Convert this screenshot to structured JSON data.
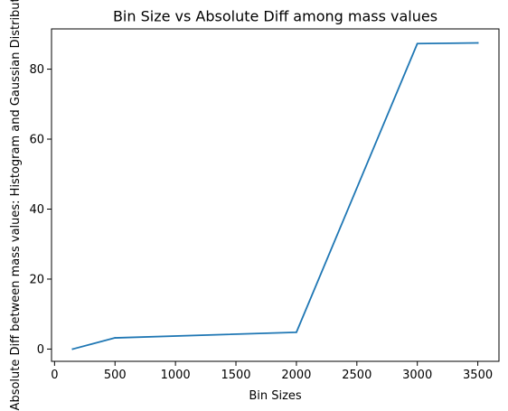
{
  "chart_data": {
    "type": "line",
    "title": "Bin Size vs Absolute Diff among mass values",
    "xlabel": "Bin Sizes",
    "ylabel": "Absolute Diff between mass values: Histogram and Gaussian Distribution",
    "xlim": [
      -25,
      3675
    ],
    "ylim": [
      -3.5,
      91.5
    ],
    "xticks": [
      0,
      500,
      1000,
      1500,
      2000,
      2500,
      3000,
      3500
    ],
    "xtick_labels": [
      "0",
      "500",
      "1000",
      "1500",
      "2000",
      "2500",
      "3000",
      "3500"
    ],
    "yticks": [
      0,
      20,
      40,
      60,
      80
    ],
    "ytick_labels": [
      "0",
      "20",
      "40",
      "60",
      "80"
    ],
    "grid": false,
    "series": [
      {
        "color": "#1f77b4",
        "x": [
          150,
          500,
          2000,
          3000,
          3500
        ],
        "y": [
          0.0,
          3.2,
          4.8,
          87.3,
          87.5
        ]
      }
    ]
  }
}
